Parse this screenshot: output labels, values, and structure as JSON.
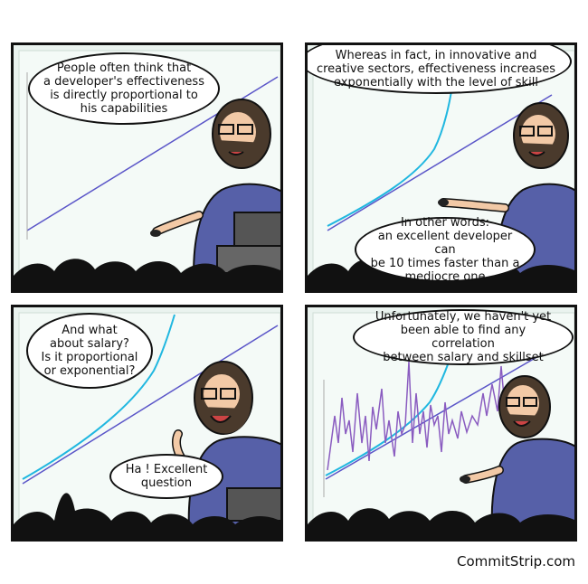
{
  "panels": [
    {
      "bubbles": [
        "People often think that\na developer's effectiveness\nis directly proportional to\nhis capabilities"
      ]
    },
    {
      "bubbles": [
        "Whereas in fact, in innovative and\ncreative sectors, effectiveness increases\nexponentially with the level of skill",
        "In other words:\nan excellent developer can\nbe 10 times faster than a\nmediocre one"
      ]
    },
    {
      "bubbles": [
        "And what\nabout salary?\nIs it proportional\nor exponential?",
        "Ha ! Excellent\nquestion"
      ]
    },
    {
      "bubbles": [
        "Unfortunately, we haven't yet\nbeen able to find any correlation\nbetween salary and skillset"
      ]
    }
  ],
  "credit": "CommitStrip.com",
  "colors": {
    "linear_line": "#5a55c8",
    "exponential_curve": "#20b7e0",
    "salary_noise": "#8a5cc0",
    "shirt": "#5660a8",
    "beard": "#4a3a2c",
    "skin": "#f2c9a6",
    "screen": "#eaf3ef",
    "audience": "#111111"
  }
}
